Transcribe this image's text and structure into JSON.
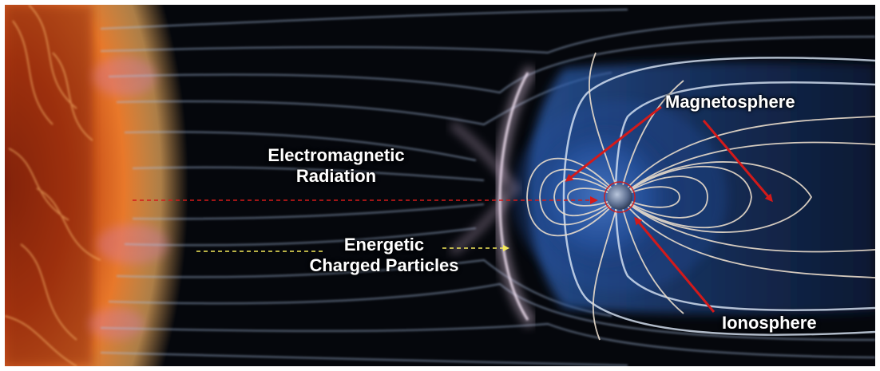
{
  "labels": {
    "em_radiation_line1": "Electromagnetic",
    "em_radiation_line2": "Radiation",
    "particles_line1": "Energetic",
    "particles_line2": "Charged Particles",
    "magnetosphere": "Magnetosphere",
    "ionosphere": "Ionosphere"
  },
  "colors": {
    "background": "#05070c",
    "sun_core": "#c84a10",
    "sun_glow": "#f39a3a",
    "field_lines": "#e9dccb",
    "solar_wind": "#9fb6d6",
    "magnetosphere_blue": "#2b5fae",
    "bow_shock": "#e7c8e8",
    "arrow_red": "#d31a1a",
    "particles_yellow": "#f5ea5a"
  }
}
